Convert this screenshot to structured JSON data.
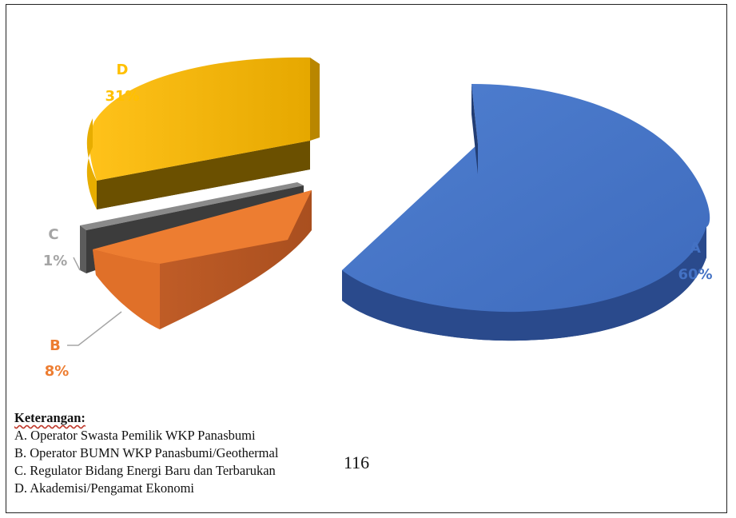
{
  "chart_data": {
    "type": "pie",
    "categories": [
      "A",
      "B",
      "C",
      "D"
    ],
    "values": [
      60,
      8,
      1,
      31
    ],
    "value_labels": [
      "60%",
      "8%",
      "1%",
      "31%"
    ],
    "colors": {
      "A": "#4472c4",
      "B": "#ed7d31",
      "C": "#7f7f7f",
      "D": "#ffc000"
    },
    "label_colors": {
      "A": "#4472c4",
      "B": "#ed7d31",
      "C": "#a5a5a5",
      "D": "#ffc000"
    },
    "style": "3d-exploded"
  },
  "legend": {
    "header": "Keterangan:",
    "items": [
      "A. Operator Swasta Pemilik WKP Panasbumi",
      "B. Operator BUMN WKP Panasbumi/Geothermal",
      "C. Regulator Bidang Energi Baru dan Terbarukan",
      "D. Akademisi/Pengamat Ekonomi"
    ]
  },
  "page_number": "116"
}
